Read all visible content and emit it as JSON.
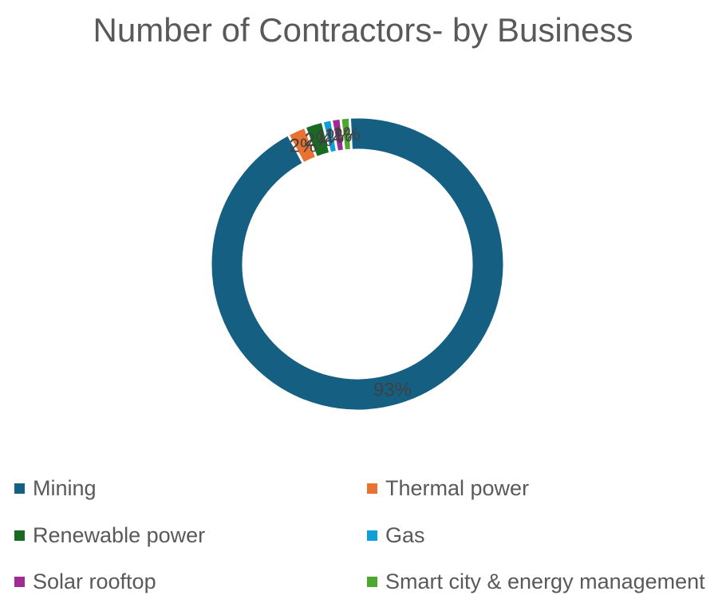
{
  "chart_data": {
    "type": "pie",
    "donut": true,
    "title": "Number of Contractors- by Business",
    "labels": [
      "Mining",
      "Thermal power",
      "Renewable power",
      "Gas",
      "Solar rooftop",
      "Smart city & energy management"
    ],
    "values": [
      93,
      2,
      2,
      1,
      1,
      1
    ],
    "data_labels": [
      "93%",
      "2%",
      "2%",
      "1%",
      "1%",
      "1%"
    ],
    "colors": [
      "#156082",
      "#E97132",
      "#196B24",
      "#0F9ED5",
      "#A02B93",
      "#4EA72E"
    ],
    "legend_position": "bottom"
  }
}
